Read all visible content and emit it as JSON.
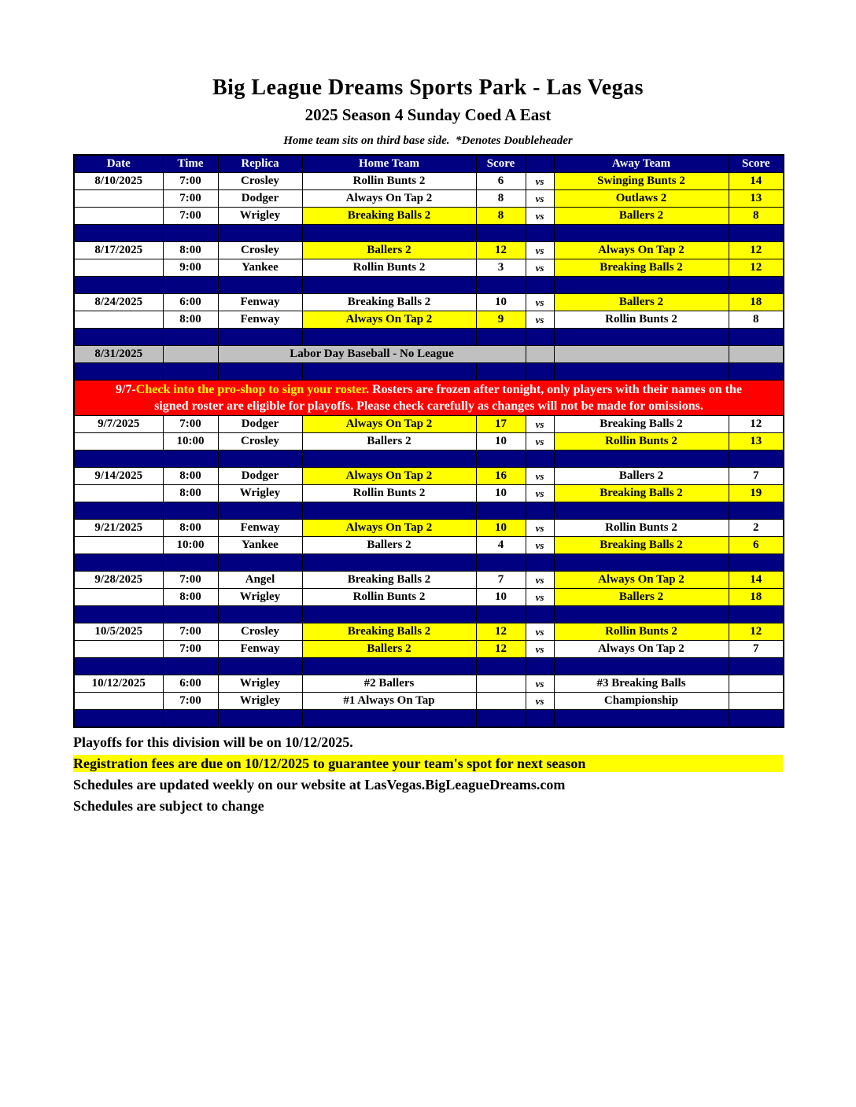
{
  "colors": {
    "navy": "#000080",
    "yellow": "#FFFF00",
    "red": "#FF0000",
    "gray": "#C0C0C0"
  },
  "header": {
    "title": "Big League Dreams Sports Park - Las Vegas",
    "subtitle": "2025 Season 4 Sunday Coed A East",
    "note": "Home team sits on third base side.  *Denotes Doubleheader"
  },
  "table": {
    "columns": [
      "Date",
      "Time",
      "Replica",
      "Home Team",
      "Score",
      "",
      "Away Team",
      "Score"
    ],
    "vs_label": "vs",
    "rows": [
      {
        "type": "game",
        "date": "8/10/2025",
        "time": "7:00",
        "replica": "Crosley",
        "home": "Rollin Bunts 2",
        "home_score": "6",
        "home_hl": false,
        "away": "Swinging Bunts 2",
        "away_score": "14",
        "away_hl": true
      },
      {
        "type": "game",
        "date": "",
        "time": "7:00",
        "replica": "Dodger",
        "home": "Always On Tap 2",
        "home_score": "8",
        "home_hl": false,
        "away": "Outlaws 2",
        "away_score": "13",
        "away_hl": true
      },
      {
        "type": "game",
        "date": "",
        "time": "7:00",
        "replica": "Wrigley",
        "home": "Breaking Balls 2",
        "home_score": "8",
        "home_hl": true,
        "away": "Ballers 2",
        "away_score": "8",
        "away_hl": true
      },
      {
        "type": "spacer"
      },
      {
        "type": "game",
        "date": "8/17/2025",
        "time": "8:00",
        "replica": "Crosley",
        "home": "Ballers 2",
        "home_score": "12",
        "home_hl": true,
        "away": "Always On Tap 2",
        "away_score": "12",
        "away_hl": true
      },
      {
        "type": "game",
        "date": "",
        "time": "9:00",
        "replica": "Yankee",
        "home": "Rollin Bunts 2",
        "home_score": "3",
        "home_hl": false,
        "away": "Breaking Balls 2",
        "away_score": "12",
        "away_hl": true
      },
      {
        "type": "spacer"
      },
      {
        "type": "game",
        "date": "8/24/2025",
        "time": "6:00",
        "replica": "Fenway",
        "home": "Breaking Balls 2",
        "home_score": "10",
        "home_hl": false,
        "away": "Ballers 2",
        "away_score": "18",
        "away_hl": true
      },
      {
        "type": "game",
        "date": "",
        "time": "8:00",
        "replica": "Fenway",
        "home": "Always On Tap 2",
        "home_score": "9",
        "home_hl": true,
        "away": "Rollin Bunts 2",
        "away_score": "8",
        "away_hl": false
      },
      {
        "type": "spacer"
      },
      {
        "type": "notice",
        "date": "8/31/2025",
        "text": "Labor Day Baseball - No League"
      },
      {
        "type": "spacer"
      },
      {
        "type": "banner"
      },
      {
        "type": "game",
        "date": "9/7/2025",
        "time": "7:00",
        "replica": "Dodger",
        "home": "Always On Tap 2",
        "home_score": "17",
        "home_hl": true,
        "away": "Breaking Balls 2",
        "away_score": "12",
        "away_hl": false
      },
      {
        "type": "game",
        "date": "",
        "time": "10:00",
        "replica": "Crosley",
        "home": "Ballers 2",
        "home_score": "10",
        "home_hl": false,
        "away": "Rollin Bunts 2",
        "away_score": "13",
        "away_hl": true
      },
      {
        "type": "spacer"
      },
      {
        "type": "game",
        "date": "9/14/2025",
        "time": "8:00",
        "replica": "Dodger",
        "home": "Always On Tap 2",
        "home_score": "16",
        "home_hl": true,
        "away": "Ballers 2",
        "away_score": "7",
        "away_hl": false
      },
      {
        "type": "game",
        "date": "",
        "time": "8:00",
        "replica": "Wrigley",
        "home": "Rollin Bunts 2",
        "home_score": "10",
        "home_hl": false,
        "away": "Breaking Balls 2",
        "away_score": "19",
        "away_hl": true
      },
      {
        "type": "spacer"
      },
      {
        "type": "game",
        "date": "9/21/2025",
        "time": "8:00",
        "replica": "Fenway",
        "home": "Always On Tap 2",
        "home_score": "10",
        "home_hl": true,
        "away": "Rollin Bunts 2",
        "away_score": "2",
        "away_hl": false
      },
      {
        "type": "game",
        "date": "",
        "time": "10:00",
        "replica": "Yankee",
        "home": "Ballers 2",
        "home_score": "4",
        "home_hl": false,
        "away": "Breaking Balls 2",
        "away_score": "6",
        "away_hl": true
      },
      {
        "type": "spacer"
      },
      {
        "type": "game",
        "date": "9/28/2025",
        "time": "7:00",
        "replica": "Angel",
        "home": "Breaking Balls 2",
        "home_score": "7",
        "home_hl": false,
        "away": "Always On Tap 2",
        "away_score": "14",
        "away_hl": true
      },
      {
        "type": "game",
        "date": "",
        "time": "8:00",
        "replica": "Wrigley",
        "home": "Rollin Bunts 2",
        "home_score": "10",
        "home_hl": false,
        "away": "Ballers 2",
        "away_score": "18",
        "away_hl": true
      },
      {
        "type": "spacer"
      },
      {
        "type": "game",
        "date": "10/5/2025",
        "time": "7:00",
        "replica": "Crosley",
        "home": "Breaking Balls 2",
        "home_score": "12",
        "home_hl": true,
        "away": "Rollin Bunts 2",
        "away_score": "12",
        "away_hl": true
      },
      {
        "type": "game",
        "date": "",
        "time": "7:00",
        "replica": "Fenway",
        "home": "Ballers 2",
        "home_score": "12",
        "home_hl": true,
        "away": "Always On Tap 2",
        "away_score": "7",
        "away_hl": false
      },
      {
        "type": "spacer"
      },
      {
        "type": "game",
        "date": "10/12/2025",
        "time": "6:00",
        "replica": "Wrigley",
        "home": "#2 Ballers",
        "home_score": "",
        "home_hl": false,
        "away": "#3 Breaking Balls",
        "away_score": "",
        "away_hl": false
      },
      {
        "type": "game",
        "date": "",
        "time": "7:00",
        "replica": "Wrigley",
        "home": "#1 Always On Tap",
        "home_score": "",
        "home_hl": false,
        "away": "Championship",
        "away_score": "",
        "away_hl": false
      },
      {
        "type": "spacer"
      }
    ]
  },
  "banner": {
    "line1_segments": [
      {
        "text": "9/7-",
        "color": "#FFFFFF"
      },
      {
        "text": "Check into the pro-shop to sign your roster",
        "color": "#FFFF00"
      },
      {
        "text": ". Rosters are frozen after tonight, only players with their names on the",
        "color": "#FFFFFF"
      }
    ],
    "line2": "signed roster are eligible for playoffs. Please check carefully as changes will not be made for omissions.",
    "line2_color": "#FFFFFF"
  },
  "footer": {
    "playoffs": "Playoffs for this division will be on 10/12/2025.",
    "registration": "Registration fees are due on 10/12/2025 to guarantee your team's spot for next season",
    "website": "Schedules are updated weekly on our website at LasVegas.BigLeagueDreams.com",
    "schedule_change": "Schedules are subject to change"
  }
}
